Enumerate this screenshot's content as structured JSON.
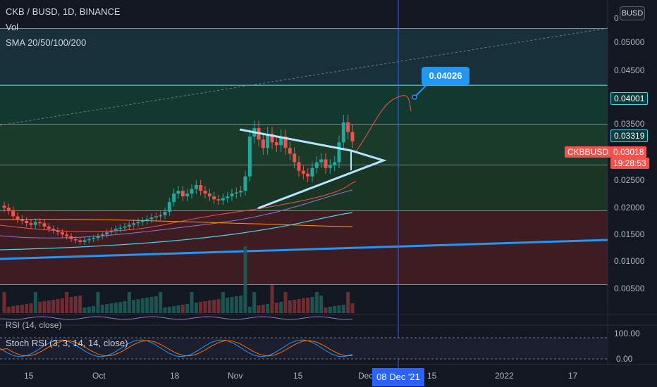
{
  "header": {
    "symbol_line": "CKB / BUSD, 1D, BINANCE",
    "vol_label": "Vol",
    "sma_label": "SMA 20/50/100/200",
    "currency_button": "BUSD"
  },
  "price_scale": {
    "labels": [
      "0.05000",
      "0.04500",
      "0.03500",
      "0.02500",
      "0.02000",
      "0.01500",
      "0.01000",
      "0.00500"
    ],
    "partial_top": "0"
  },
  "tags": {
    "level_04001": "0.04001",
    "level_03319": "0.03319",
    "symbol_tag": "CKBBUSD",
    "last_price": "0.03018",
    "countdown": "19:28:53",
    "callout_value": "0.04026"
  },
  "time_axis": {
    "labels": [
      "15",
      "Oct",
      "18",
      "Nov",
      "15",
      "Dec",
      "15",
      "2022",
      "17"
    ],
    "crosshair_date": "08 Dec '21"
  },
  "indicators": {
    "rsi_label": "RSI (14, close)",
    "stoch_label": "Stoch RSI (3, 3, 14, 14, close)",
    "stoch_scale": [
      "100.00",
      "0.00"
    ]
  },
  "colors": {
    "background": "#131722",
    "up": "#26a69a",
    "down": "#ef5350",
    "accent_blue": "#2196f3",
    "zone_teal": "#0e3b3a",
    "zone_red": "#3d1c22"
  },
  "chart_data": {
    "type": "candlestick",
    "y_range": [
      0.0,
      0.055
    ],
    "horizontal_levels": [
      0.05,
      0.04001,
      0.03319,
      0.026,
      0.018,
      0.005
    ],
    "candles_close_path": [
      0.0185,
      0.018,
      0.017,
      0.0165,
      0.0162,
      0.0158,
      0.0155,
      0.016,
      0.0158,
      0.0152,
      0.0148,
      0.0145,
      0.0142,
      0.0138,
      0.0135,
      0.013,
      0.0128,
      0.0125,
      0.0128,
      0.013,
      0.0132,
      0.0135,
      0.0138,
      0.0142,
      0.0145,
      0.0148,
      0.015,
      0.0152,
      0.0155,
      0.0158,
      0.016,
      0.0162,
      0.0165,
      0.0168,
      0.017,
      0.0172,
      0.0178,
      0.0195,
      0.021,
      0.0215,
      0.0205,
      0.021,
      0.0218,
      0.0225,
      0.0215,
      0.021,
      0.0205,
      0.02,
      0.0198,
      0.0202,
      0.0205,
      0.021,
      0.0212,
      0.0215,
      0.024,
      0.031,
      0.0325,
      0.0305,
      0.029,
      0.0315,
      0.03,
      0.0295,
      0.031,
      0.029,
      0.028,
      0.0265,
      0.025,
      0.0245,
      0.024,
      0.0255,
      0.0265,
      0.027,
      0.0255,
      0.026,
      0.0265,
      0.03,
      0.0335,
      0.0318,
      0.03018
    ],
    "projection_target": 0.04026
  }
}
